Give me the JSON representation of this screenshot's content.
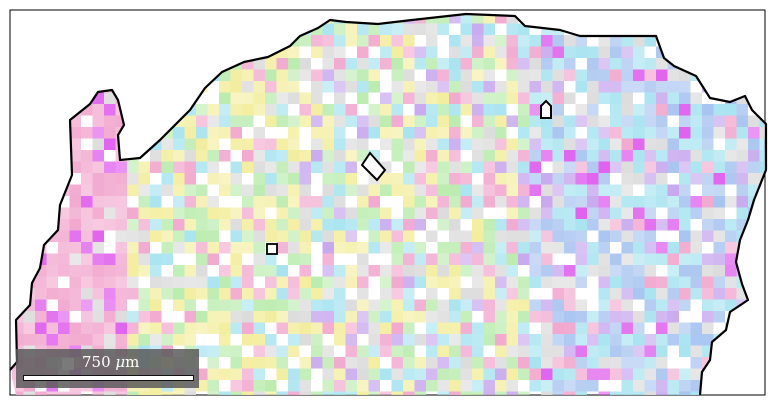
{
  "scale_bar": {
    "value": "750",
    "unit_symbol": "μ",
    "unit_suffix": "m"
  },
  "colors": {
    "pink": "#f2a9cf",
    "magenta": "#e060ee",
    "violet": "#c8a8ee",
    "yellow": "#f3ee9e",
    "green": "#bcecb0",
    "cyan": "#a8e4f0",
    "blue": "#a8c4f0",
    "grey": "#dcdcdc",
    "outline": "#000000"
  }
}
